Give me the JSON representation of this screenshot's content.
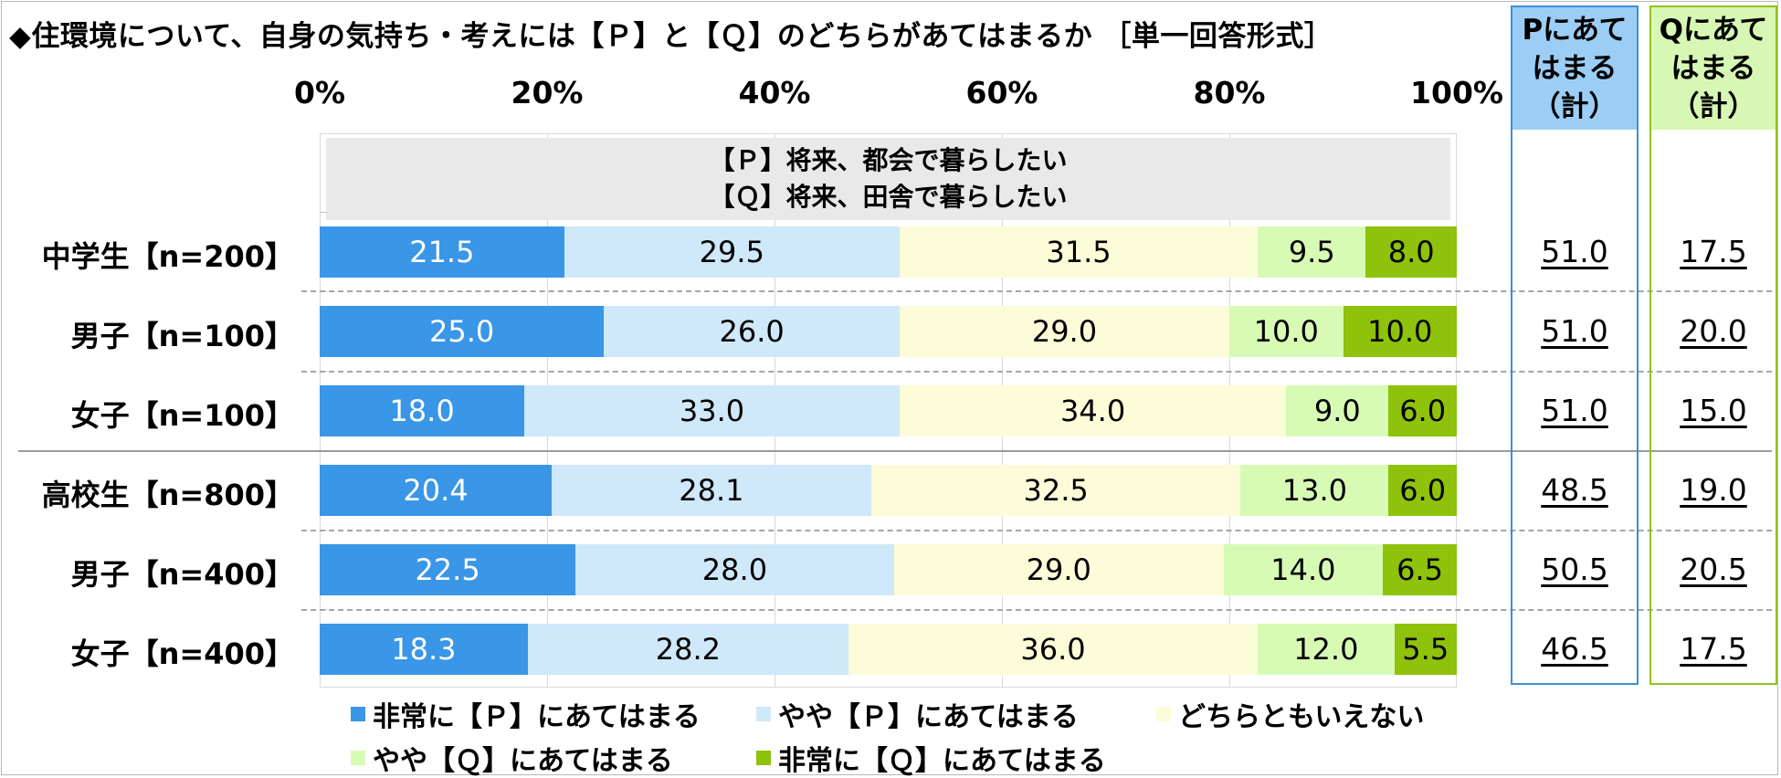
{
  "title": "◆住環境について、自身の気持ち・考えには【Ｐ】と【Ｑ】のどちらがあてはまるか ［単一回答形式］",
  "colors": [
    "#3a96e6",
    "#cfe8fa",
    "#fdfcd9",
    "#d7fbb4",
    "#8ec20b"
  ],
  "chart_data": {
    "type": "bar",
    "orientation": "horizontal-stacked-100",
    "xlim": [
      0,
      100
    ],
    "ticks": [
      "0%",
      "20%",
      "40%",
      "60%",
      "80%",
      "100%"
    ],
    "note": [
      "【Ｐ】将来、都会で暮らしたい",
      "【Ｑ】将来、田舎で暮らしたい"
    ],
    "categories": [
      "中学生【n=200】",
      "男子【n=100】",
      "女子【n=100】",
      "高校生【n=800】",
      "男子【n=400】",
      "女子【n=400】"
    ],
    "series": [
      {
        "name": "非常に【Ｐ】にあてはまる",
        "values": [
          21.5,
          25.0,
          18.0,
          20.4,
          22.5,
          18.3
        ]
      },
      {
        "name": "やや【Ｐ】にあてはまる",
        "values": [
          29.5,
          26.0,
          33.0,
          28.1,
          28.0,
          28.2
        ]
      },
      {
        "name": "どちらともいえない",
        "values": [
          31.5,
          29.0,
          34.0,
          32.5,
          29.0,
          36.0
        ]
      },
      {
        "name": "やや【Ｑ】にあてはまる",
        "values": [
          9.5,
          10.0,
          9.0,
          13.0,
          14.0,
          12.0
        ]
      },
      {
        "name": "非常に【Ｑ】にあてはまる",
        "values": [
          8.0,
          10.0,
          6.0,
          6.0,
          6.5,
          5.5
        ]
      }
    ],
    "totals": {
      "p_header": [
        "Pにあて",
        "はまる",
        "（計）"
      ],
      "q_header": [
        "Qにあて",
        "はまる",
        "（計）"
      ],
      "p_values": [
        "51.0",
        "51.0",
        "51.0",
        "48.5",
        "50.5",
        "46.5"
      ],
      "q_values": [
        "17.5",
        "20.0",
        "15.0",
        "19.0",
        "20.5",
        "17.5"
      ]
    },
    "legend": "bottom"
  }
}
